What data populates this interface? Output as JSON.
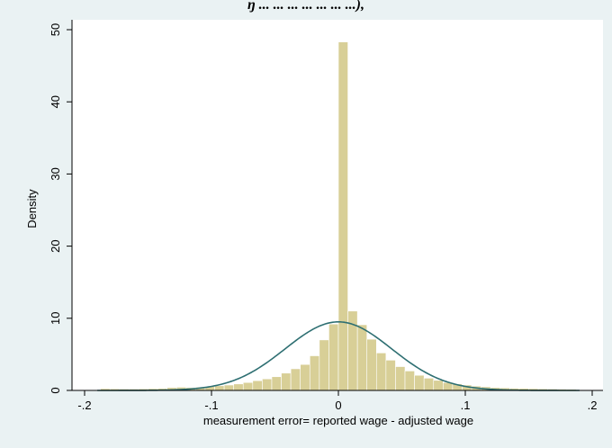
{
  "header_fragment": "ŋ ... ... ... ... ... ... ...),",
  "chart_data": {
    "type": "histogram",
    "xlabel": "measurement error= reported wage - adjusted wage",
    "ylabel": "Density",
    "xlim": [
      -0.2,
      0.2
    ],
    "ylim": [
      0,
      50
    ],
    "x_ticks": [
      -0.2,
      -0.1,
      0,
      0.1,
      0.2
    ],
    "x_tick_labels": [
      "-.2",
      "-.1",
      "0",
      ".1",
      ".2"
    ],
    "y_ticks": [
      0,
      10,
      20,
      30,
      40,
      50
    ],
    "y_tick_labels": [
      "0",
      "10",
      "20",
      "30",
      "40",
      "50"
    ],
    "grid": "none",
    "bar_color": "#d8cf97",
    "bar_edge_color": "#ffffff",
    "curve_color": "#2e6f72",
    "plot_region_color": "#ffffff",
    "outer_background_color": "#eaf2f3",
    "bins": {
      "width": 0.0075,
      "edges_start": -0.1875,
      "density": [
        0.25,
        0.22,
        0.2,
        0.2,
        0.22,
        0.25,
        0.28,
        0.4,
        0.45,
        0.4,
        0.45,
        0.55,
        0.65,
        0.75,
        0.9,
        1.1,
        1.35,
        1.6,
        1.9,
        2.4,
        3.0,
        3.6,
        4.8,
        7.0,
        9.2,
        48.3,
        11.0,
        9.1,
        7.1,
        5.2,
        4.2,
        3.3,
        2.7,
        2.1,
        1.7,
        1.4,
        1.1,
        0.9,
        0.75,
        0.6,
        0.5,
        0.4,
        0.35,
        0.3,
        0.28,
        0.25,
        0.22,
        0.2,
        0.18,
        0.16
      ]
    },
    "normal_curve": {
      "mean": 0.0,
      "sd": 0.042,
      "peak_density": 9.5
    }
  }
}
